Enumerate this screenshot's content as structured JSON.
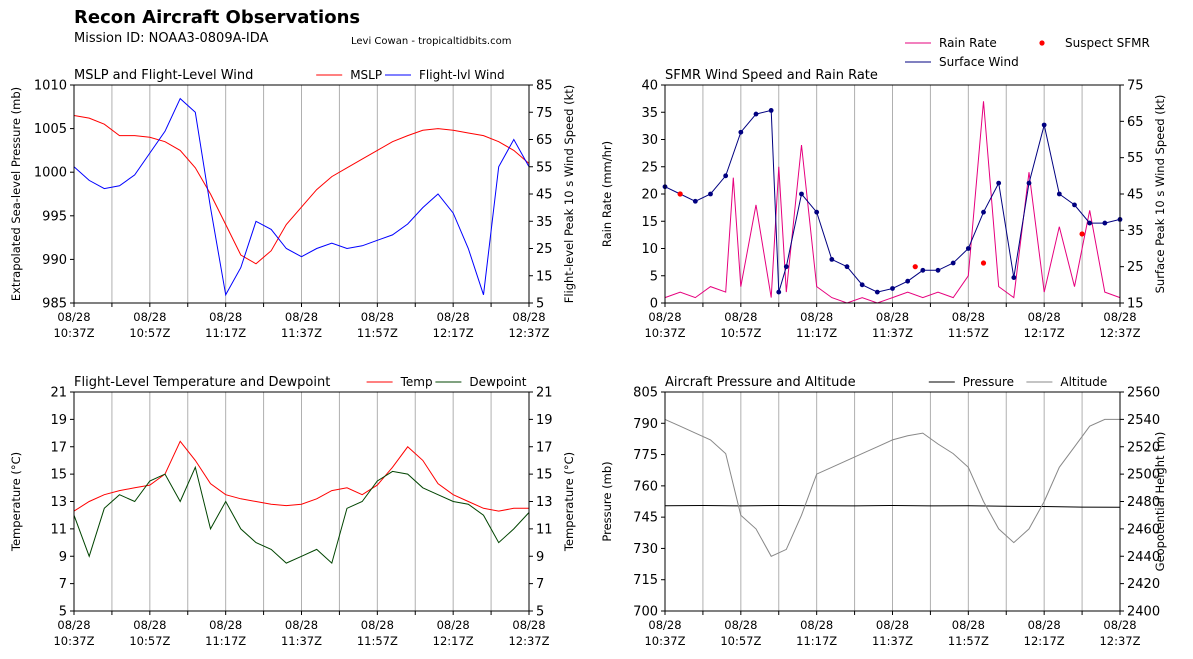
{
  "header": {
    "title": "Recon Aircraft Observations",
    "mission": "Mission ID: NOAA3-0809A-IDA",
    "credit": "Levi Cowan - tropicaltidbits.com"
  },
  "time_ticks": [
    [
      "08/28",
      "10:37Z"
    ],
    [
      "08/28",
      "10:57Z"
    ],
    [
      "08/28",
      "11:17Z"
    ],
    [
      "08/28",
      "11:37Z"
    ],
    [
      "08/28",
      "11:57Z"
    ],
    [
      "08/28",
      "12:17Z"
    ],
    [
      "08/28",
      "12:37Z"
    ]
  ],
  "chart_data": [
    {
      "id": "mslp_wind",
      "type": "line",
      "title": "MSLP and Flight-Level Wind",
      "ylabel_left": "Extrapolated Sea-level Pressure (mb)",
      "ylabel_right": "Flight-level Peak 10 s Wind Speed (kt)",
      "ylim_left": [
        985,
        1010
      ],
      "yticks_left": [
        985,
        990,
        995,
        1000,
        1005,
        1010
      ],
      "ylim_right": [
        5,
        85
      ],
      "yticks_right": [
        5,
        15,
        25,
        35,
        45,
        55,
        65,
        75,
        85
      ],
      "grid": "vertical",
      "legend": "top-right",
      "series": [
        {
          "name": "MSLP",
          "color": "#ff0000",
          "axis": "left",
          "x": [
            0,
            4,
            8,
            12,
            16,
            20,
            24,
            28,
            32,
            36,
            40,
            44,
            48,
            52,
            56,
            60,
            64,
            68,
            72,
            76,
            80,
            84,
            88,
            92,
            96,
            100,
            104,
            108,
            112,
            116,
            120
          ],
          "values": [
            1006.5,
            1006.2,
            1005.5,
            1004.2,
            1004.2,
            1004.0,
            1003.5,
            1002.5,
            1000.5,
            997.5,
            994.0,
            990.5,
            989.5,
            991.0,
            994.0,
            996.0,
            998.0,
            999.5,
            1000.5,
            1001.5,
            1002.5,
            1003.5,
            1004.2,
            1004.8,
            1005.0,
            1004.8,
            1004.5,
            1004.2,
            1003.5,
            1002.5,
            1001.0
          ]
        },
        {
          "name": "Flight-lvl Wind",
          "color": "#0000ff",
          "axis": "right",
          "x": [
            0,
            4,
            8,
            12,
            16,
            20,
            24,
            28,
            32,
            36,
            40,
            44,
            48,
            52,
            56,
            60,
            64,
            68,
            72,
            76,
            80,
            84,
            88,
            92,
            96,
            100,
            104,
            108,
            112,
            116,
            120
          ],
          "values": [
            55,
            50,
            47,
            48,
            52,
            60,
            68,
            80,
            75,
            40,
            8,
            18,
            35,
            32,
            25,
            22,
            25,
            27,
            25,
            26,
            28,
            30,
            34,
            40,
            45,
            38,
            25,
            8,
            55,
            65,
            55
          ]
        }
      ]
    },
    {
      "id": "sfmr",
      "type": "line",
      "title": "SFMR Wind Speed and Rain Rate",
      "ylabel_left": "Rain Rate (mm/hr)",
      "ylabel_right": "Surface Peak 10 s Wind Speed (kt)",
      "ylim_left": [
        0,
        40
      ],
      "yticks_left": [
        0,
        5,
        10,
        15,
        20,
        25,
        30,
        35,
        40
      ],
      "ylim_right": [
        15,
        75
      ],
      "yticks_right": [
        15,
        25,
        35,
        45,
        55,
        65,
        75
      ],
      "grid": "vertical",
      "legend": "above-right",
      "series": [
        {
          "name": "Rain Rate",
          "color": "#e6007e",
          "axis": "left",
          "x": [
            0,
            4,
            8,
            12,
            16,
            18,
            20,
            24,
            28,
            30,
            32,
            36,
            40,
            44,
            48,
            52,
            56,
            60,
            64,
            68,
            72,
            76,
            80,
            84,
            88,
            92,
            96,
            100,
            104,
            108,
            112,
            116,
            120
          ],
          "values": [
            1,
            2,
            1,
            3,
            2,
            23,
            3,
            18,
            1,
            25,
            2,
            29,
            3,
            1,
            0,
            1,
            0,
            1,
            2,
            1,
            2,
            1,
            5,
            37,
            3,
            1,
            24,
            2,
            14,
            3,
            17,
            2,
            1
          ]
        },
        {
          "name": "Surface Wind",
          "color": "#000080",
          "axis": "right",
          "x": [
            0,
            4,
            8,
            12,
            16,
            20,
            24,
            28,
            30,
            32,
            36,
            40,
            44,
            48,
            52,
            56,
            60,
            64,
            68,
            72,
            76,
            80,
            84,
            88,
            92,
            96,
            100,
            104,
            108,
            112,
            116,
            120
          ],
          "values": [
            47,
            45,
            43,
            45,
            50,
            62,
            67,
            68,
            18,
            25,
            45,
            40,
            27,
            25,
            20,
            18,
            19,
            21,
            24,
            24,
            26,
            30,
            40,
            48,
            22,
            48,
            64,
            45,
            42,
            37,
            37,
            38
          ]
        },
        {
          "name": "Suspect SFMR",
          "color": "#ff0000",
          "axis": "right",
          "x": [
            4,
            66,
            84,
            110
          ],
          "values": [
            45,
            25,
            26,
            34
          ]
        }
      ]
    },
    {
      "id": "temp_dew",
      "type": "line",
      "title": "Flight-Level Temperature and Dewpoint",
      "ylabel_left": "Temperature (°C)",
      "ylabel_right": "Temperature (°C)",
      "ylim_left": [
        5,
        21
      ],
      "yticks_left": [
        5,
        7,
        9,
        11,
        13,
        15,
        17,
        19,
        21
      ],
      "ylim_right": [
        5,
        21
      ],
      "yticks_right": [
        5,
        7,
        9,
        11,
        13,
        15,
        17,
        19,
        21
      ],
      "grid": "vertical",
      "legend": "top-right",
      "series": [
        {
          "name": "Temp",
          "color": "#ff0000",
          "axis": "left",
          "x": [
            0,
            4,
            8,
            12,
            16,
            20,
            24,
            28,
            32,
            36,
            40,
            44,
            48,
            52,
            56,
            60,
            64,
            68,
            72,
            76,
            80,
            84,
            88,
            92,
            96,
            100,
            104,
            108,
            112,
            116,
            120
          ],
          "values": [
            12.3,
            13.0,
            13.5,
            13.8,
            14.0,
            14.2,
            15.0,
            17.4,
            16.0,
            14.3,
            13.5,
            13.2,
            13.0,
            12.8,
            12.7,
            12.8,
            13.2,
            13.8,
            14.0,
            13.5,
            14.2,
            15.5,
            17.0,
            16.0,
            14.3,
            13.5,
            13.0,
            12.5,
            12.3,
            12.5,
            12.5
          ]
        },
        {
          "name": "Dewpoint",
          "color": "#004400",
          "axis": "left",
          "x": [
            0,
            4,
            8,
            12,
            16,
            20,
            24,
            28,
            32,
            36,
            40,
            44,
            48,
            52,
            56,
            60,
            64,
            68,
            72,
            76,
            80,
            84,
            88,
            92,
            96,
            100,
            104,
            108,
            112,
            116,
            120
          ],
          "values": [
            12.0,
            9.0,
            12.5,
            13.5,
            13.0,
            14.5,
            15.0,
            13.0,
            15.5,
            11.0,
            13.0,
            11.0,
            10.0,
            9.5,
            8.5,
            9.0,
            9.5,
            8.5,
            12.5,
            13.0,
            14.5,
            15.2,
            15.0,
            14.0,
            13.5,
            13.0,
            12.8,
            12.0,
            10.0,
            11.0,
            12.2
          ]
        }
      ]
    },
    {
      "id": "press_alt",
      "type": "line",
      "title": "Aircraft Pressure and Altitude",
      "ylabel_left": "Pressure (mb)",
      "ylabel_right": "Geopotential Height (m)",
      "ylim_left": [
        700,
        805
      ],
      "yticks_left": [
        700,
        715,
        730,
        745,
        760,
        775,
        790,
        805
      ],
      "ylim_right": [
        2400,
        2560
      ],
      "yticks_right": [
        2400,
        2420,
        2440,
        2460,
        2480,
        2500,
        2520,
        2540,
        2560
      ],
      "grid": "vertical",
      "legend": "top-right",
      "series": [
        {
          "name": "Pressure",
          "color": "#000000",
          "axis": "left",
          "x": [
            0,
            10,
            20,
            30,
            40,
            50,
            60,
            70,
            80,
            90,
            100,
            110,
            120
          ],
          "values": [
            750.5,
            750.6,
            750.4,
            750.6,
            750.5,
            750.4,
            750.6,
            750.4,
            750.5,
            750.2,
            750.1,
            749.8,
            749.7
          ]
        },
        {
          "name": "Altitude",
          "color": "#888888",
          "axis": "right",
          "x": [
            0,
            4,
            8,
            12,
            16,
            20,
            24,
            28,
            32,
            36,
            40,
            44,
            48,
            52,
            56,
            60,
            64,
            68,
            72,
            76,
            80,
            84,
            88,
            92,
            96,
            100,
            104,
            108,
            112,
            116,
            120
          ],
          "values": [
            2540,
            2535,
            2530,
            2525,
            2515,
            2470,
            2460,
            2440,
            2445,
            2470,
            2500,
            2505,
            2510,
            2515,
            2520,
            2525,
            2528,
            2530,
            2522,
            2515,
            2505,
            2480,
            2460,
            2450,
            2460,
            2480,
            2505,
            2520,
            2535,
            2540,
            2540
          ]
        }
      ]
    }
  ]
}
